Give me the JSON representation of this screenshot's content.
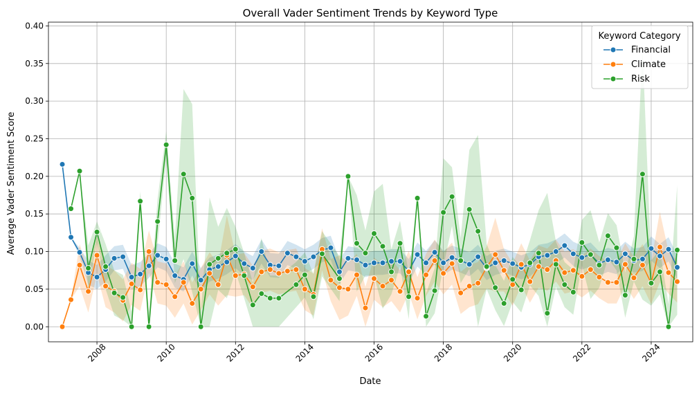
{
  "chart_data": {
    "type": "line",
    "title": "Overall Vader Sentiment Trends by Keyword Type",
    "xlabel": "Date",
    "ylabel": "Average Vader Sentiment Score",
    "xlim": [
      2006.6,
      2025.2
    ],
    "ylim": [
      -0.02,
      0.405
    ],
    "x_ticks": [
      2008,
      2010,
      2012,
      2014,
      2016,
      2018,
      2020,
      2022,
      2024
    ],
    "x_tick_labels": [
      "2008",
      "2010",
      "2012",
      "2014",
      "2016",
      "2018",
      "2020",
      "2022",
      "2024"
    ],
    "y_ticks": [
      0.0,
      0.05,
      0.1,
      0.15,
      0.2,
      0.25,
      0.3,
      0.35,
      0.4
    ],
    "y_tick_labels": [
      "0.00",
      "0.05",
      "0.10",
      "0.15",
      "0.20",
      "0.25",
      "0.30",
      "0.35",
      "0.40"
    ],
    "grid": true,
    "legend": {
      "title": "Keyword Category",
      "placement": "top-right"
    },
    "confidence_band": true,
    "series": [
      {
        "name": "Financial",
        "color": "#1f77b4",
        "x": [
          2007.0,
          2007.25,
          2007.5,
          2007.75,
          2008.0,
          2008.25,
          2008.5,
          2008.75,
          2009.0,
          2009.25,
          2009.5,
          2009.75,
          2010.0,
          2010.25,
          2010.5,
          2010.75,
          2011.0,
          2011.25,
          2011.5,
          2011.75,
          2012.0,
          2012.25,
          2012.5,
          2012.75,
          2013.0,
          2013.25,
          2013.5,
          2013.75,
          2014.0,
          2014.25,
          2014.5,
          2014.75,
          2015.0,
          2015.25,
          2015.5,
          2015.75,
          2016.0,
          2016.25,
          2016.5,
          2016.75,
          2017.0,
          2017.25,
          2017.5,
          2017.75,
          2018.0,
          2018.25,
          2018.5,
          2018.75,
          2019.0,
          2019.25,
          2019.5,
          2019.75,
          2020.0,
          2020.25,
          2020.5,
          2020.75,
          2021.0,
          2021.25,
          2021.5,
          2021.75,
          2022.0,
          2022.25,
          2022.5,
          2022.75,
          2023.0,
          2023.25,
          2023.5,
          2023.75,
          2024.0,
          2024.25,
          2024.5,
          2024.75
        ],
        "y": [
          0.216,
          0.119,
          0.099,
          0.072,
          0.066,
          0.076,
          0.091,
          0.093,
          0.066,
          0.07,
          0.081,
          0.095,
          0.09,
          0.068,
          0.063,
          0.084,
          0.062,
          0.076,
          0.08,
          0.086,
          0.094,
          0.084,
          0.078,
          0.1,
          0.082,
          0.081,
          0.098,
          0.093,
          0.087,
          0.093,
          0.102,
          0.105,
          0.073,
          0.091,
          0.089,
          0.082,
          0.085,
          0.085,
          0.087,
          0.087,
          0.074,
          0.096,
          0.085,
          0.099,
          0.085,
          0.092,
          0.088,
          0.083,
          0.093,
          0.078,
          0.085,
          0.088,
          0.084,
          0.079,
          0.083,
          0.093,
          0.095,
          0.1,
          0.108,
          0.097,
          0.092,
          0.096,
          0.084,
          0.089,
          0.086,
          0.097,
          0.088,
          0.09,
          0.104,
          0.094,
          0.103,
          0.079
        ],
        "upper": [
          0.216,
          0.119,
          0.105,
          0.088,
          0.082,
          0.095,
          0.107,
          0.109,
          0.082,
          0.086,
          0.097,
          0.111,
          0.106,
          0.084,
          0.079,
          0.1,
          0.078,
          0.092,
          0.096,
          0.102,
          0.11,
          0.1,
          0.094,
          0.116,
          0.098,
          0.097,
          0.114,
          0.109,
          0.103,
          0.109,
          0.118,
          0.121,
          0.089,
          0.107,
          0.105,
          0.098,
          0.101,
          0.101,
          0.103,
          0.103,
          0.09,
          0.112,
          0.101,
          0.115,
          0.101,
          0.108,
          0.104,
          0.099,
          0.109,
          0.094,
          0.101,
          0.104,
          0.1,
          0.095,
          0.099,
          0.109,
          0.111,
          0.116,
          0.124,
          0.113,
          0.108,
          0.112,
          0.1,
          0.105,
          0.102,
          0.113,
          0.104,
          0.106,
          0.12,
          0.11,
          0.119,
          0.095
        ],
        "lower": [
          0.216,
          0.119,
          0.093,
          0.056,
          0.05,
          0.06,
          0.075,
          0.077,
          0.05,
          0.054,
          0.065,
          0.079,
          0.074,
          0.052,
          0.047,
          0.068,
          0.046,
          0.06,
          0.064,
          0.07,
          0.078,
          0.068,
          0.062,
          0.084,
          0.066,
          0.065,
          0.082,
          0.077,
          0.071,
          0.077,
          0.086,
          0.089,
          0.057,
          0.075,
          0.073,
          0.066,
          0.069,
          0.069,
          0.071,
          0.071,
          0.058,
          0.08,
          0.069,
          0.083,
          0.069,
          0.076,
          0.072,
          0.067,
          0.077,
          0.062,
          0.069,
          0.072,
          0.068,
          0.063,
          0.067,
          0.077,
          0.079,
          0.084,
          0.092,
          0.081,
          0.076,
          0.08,
          0.068,
          0.073,
          0.07,
          0.081,
          0.072,
          0.074,
          0.088,
          0.078,
          0.087,
          0.063
        ]
      },
      {
        "name": "Climate",
        "color": "#ff7f0e",
        "x": [
          2007.0,
          2007.25,
          2007.5,
          2007.75,
          2008.0,
          2008.25,
          2008.5,
          2008.75,
          2009.0,
          2009.25,
          2009.5,
          2009.75,
          2010.0,
          2010.25,
          2010.5,
          2010.75,
          2011.0,
          2011.25,
          2011.5,
          2011.75,
          2012.0,
          2012.25,
          2012.5,
          2012.75,
          2013.0,
          2013.25,
          2013.5,
          2013.75,
          2014.0,
          2014.25,
          2014.5,
          2014.75,
          2015.0,
          2015.25,
          2015.5,
          2015.75,
          2016.0,
          2016.25,
          2016.5,
          2016.75,
          2017.0,
          2017.25,
          2017.5,
          2017.75,
          2018.0,
          2018.25,
          2018.5,
          2018.75,
          2019.0,
          2019.25,
          2019.5,
          2019.75,
          2020.0,
          2020.25,
          2020.5,
          2020.75,
          2021.0,
          2021.25,
          2021.5,
          2021.75,
          2022.0,
          2022.25,
          2022.5,
          2022.75,
          2023.0,
          2023.25,
          2023.5,
          2023.75,
          2024.0,
          2024.25,
          2024.5,
          2024.75
        ],
        "y": [
          0.0,
          0.036,
          0.082,
          0.047,
          0.095,
          0.054,
          0.047,
          0.035,
          0.057,
          0.049,
          0.1,
          0.059,
          0.056,
          0.04,
          0.059,
          0.031,
          0.05,
          0.071,
          0.056,
          0.095,
          0.068,
          0.07,
          0.053,
          0.073,
          0.076,
          0.071,
          0.074,
          0.076,
          0.05,
          0.043,
          0.103,
          0.062,
          0.052,
          0.05,
          0.069,
          0.025,
          0.064,
          0.054,
          0.062,
          0.047,
          0.073,
          0.038,
          0.069,
          0.088,
          0.071,
          0.084,
          0.045,
          0.054,
          0.058,
          0.079,
          0.096,
          0.075,
          0.056,
          0.083,
          0.06,
          0.08,
          0.076,
          0.088,
          0.072,
          0.075,
          0.067,
          0.076,
          0.066,
          0.059,
          0.059,
          0.083,
          0.065,
          0.082,
          0.058,
          0.106,
          0.072,
          0.06
        ],
        "upper": [
          0.0,
          0.036,
          0.11,
          0.075,
          0.12,
          0.082,
          0.075,
          0.063,
          0.085,
          0.077,
          0.128,
          0.087,
          0.084,
          0.068,
          0.087,
          0.059,
          0.078,
          0.099,
          0.084,
          0.148,
          0.096,
          0.098,
          0.081,
          0.101,
          0.104,
          0.099,
          0.102,
          0.104,
          0.078,
          0.071,
          0.131,
          0.09,
          0.095,
          0.085,
          0.097,
          0.053,
          0.092,
          0.082,
          0.09,
          0.075,
          0.101,
          0.066,
          0.097,
          0.116,
          0.099,
          0.112,
          0.073,
          0.082,
          0.086,
          0.107,
          0.145,
          0.103,
          0.084,
          0.111,
          0.088,
          0.108,
          0.104,
          0.116,
          0.1,
          0.103,
          0.095,
          0.104,
          0.094,
          0.087,
          0.087,
          0.111,
          0.093,
          0.11,
          0.086,
          0.153,
          0.1,
          0.088
        ],
        "lower": [
          0.0,
          0.036,
          0.054,
          0.019,
          0.07,
          0.026,
          0.019,
          0.007,
          0.029,
          0.021,
          0.072,
          0.031,
          0.028,
          0.012,
          0.031,
          0.003,
          0.022,
          0.043,
          0.028,
          0.042,
          0.04,
          0.042,
          0.025,
          0.045,
          0.048,
          0.043,
          0.046,
          0.048,
          0.022,
          0.015,
          0.075,
          0.034,
          0.009,
          0.015,
          0.041,
          0.0,
          0.036,
          0.026,
          0.034,
          0.019,
          0.045,
          0.01,
          0.041,
          0.06,
          0.043,
          0.056,
          0.017,
          0.026,
          0.03,
          0.051,
          0.047,
          0.047,
          0.028,
          0.055,
          0.032,
          0.052,
          0.048,
          0.06,
          0.044,
          0.047,
          0.039,
          0.048,
          0.038,
          0.031,
          0.031,
          0.055,
          0.037,
          0.054,
          0.03,
          0.059,
          0.044,
          0.032
        ]
      },
      {
        "name": "Risk",
        "color": "#2ca02c",
        "x": [
          2007.25,
          2007.5,
          2007.75,
          2008.0,
          2008.25,
          2008.5,
          2008.75,
          2009.0,
          2009.25,
          2009.5,
          2009.75,
          2010.0,
          2010.25,
          2010.5,
          2010.75,
          2011.0,
          2011.25,
          2011.5,
          2011.75,
          2012.0,
          2012.25,
          2012.5,
          2012.75,
          2013.0,
          2013.25,
          2013.75,
          2014.0,
          2014.25,
          2014.5,
          2015.0,
          2015.25,
          2015.5,
          2015.75,
          2016.0,
          2016.25,
          2016.5,
          2016.75,
          2017.0,
          2017.25,
          2017.5,
          2017.75,
          2018.0,
          2018.25,
          2018.5,
          2018.75,
          2019.0,
          2019.25,
          2019.5,
          2019.75,
          2020.0,
          2020.25,
          2020.5,
          2020.75,
          2021.0,
          2021.25,
          2021.5,
          2021.75,
          2022.0,
          2022.25,
          2022.5,
          2022.75,
          2023.0,
          2023.25,
          2023.5,
          2023.75,
          2024.0,
          2024.25,
          2024.5,
          2024.75
        ],
        "y": [
          0.157,
          0.207,
          0.078,
          0.126,
          0.08,
          0.045,
          0.039,
          0.0,
          0.167,
          0.0,
          0.14,
          0.242,
          0.088,
          0.203,
          0.171,
          0.0,
          0.083,
          0.091,
          0.098,
          0.103,
          0.068,
          0.029,
          0.044,
          0.038,
          0.038,
          0.056,
          0.069,
          0.04,
          0.097,
          0.064,
          0.2,
          0.111,
          0.098,
          0.124,
          0.107,
          0.073,
          0.111,
          0.04,
          0.171,
          0.014,
          0.048,
          0.152,
          0.173,
          0.088,
          0.156,
          0.127,
          0.08,
          0.052,
          0.031,
          0.063,
          0.049,
          0.085,
          0.098,
          0.018,
          0.083,
          0.056,
          0.046,
          0.112,
          0.096,
          0.082,
          0.121,
          0.105,
          0.042,
          0.09,
          0.203,
          0.058,
          0.073,
          0.0,
          0.102
        ],
        "upper": [
          0.157,
          0.207,
          0.108,
          0.14,
          0.11,
          0.075,
          0.069,
          0.02,
          0.18,
          0.02,
          0.17,
          0.26,
          0.118,
          0.316,
          0.296,
          0.02,
          0.172,
          0.133,
          0.158,
          0.133,
          0.098,
          0.059,
          0.118,
          0.068,
          0.068,
          0.086,
          0.099,
          0.07,
          0.127,
          0.094,
          0.2,
          0.175,
          0.128,
          0.18,
          0.19,
          0.103,
          0.141,
          0.07,
          0.171,
          0.044,
          0.078,
          0.224,
          0.212,
          0.118,
          0.235,
          0.255,
          0.11,
          0.082,
          0.061,
          0.093,
          0.079,
          0.115,
          0.155,
          0.178,
          0.113,
          0.086,
          0.076,
          0.142,
          0.155,
          0.112,
          0.151,
          0.135,
          0.072,
          0.12,
          0.37,
          0.088,
          0.103,
          0.03,
          0.188
        ],
        "lower": [
          0.157,
          0.207,
          0.048,
          0.112,
          0.05,
          0.015,
          0.009,
          0.0,
          0.154,
          0.0,
          0.11,
          0.224,
          0.058,
          0.09,
          0.046,
          0.0,
          0.0,
          0.049,
          0.038,
          0.073,
          0.038,
          0.0,
          0.0,
          0.0,
          0.0,
          0.026,
          0.039,
          0.01,
          0.067,
          0.034,
          0.2,
          0.047,
          0.068,
          0.068,
          0.024,
          0.043,
          0.081,
          0.01,
          0.171,
          0.0,
          0.018,
          0.08,
          0.134,
          0.058,
          0.077,
          0.0,
          0.05,
          0.022,
          0.001,
          0.033,
          0.019,
          0.055,
          0.041,
          0.0,
          0.053,
          0.026,
          0.016,
          0.082,
          0.037,
          0.052,
          0.091,
          0.075,
          0.012,
          0.06,
          0.036,
          0.028,
          0.043,
          0.0,
          0.016
        ]
      }
    ]
  }
}
